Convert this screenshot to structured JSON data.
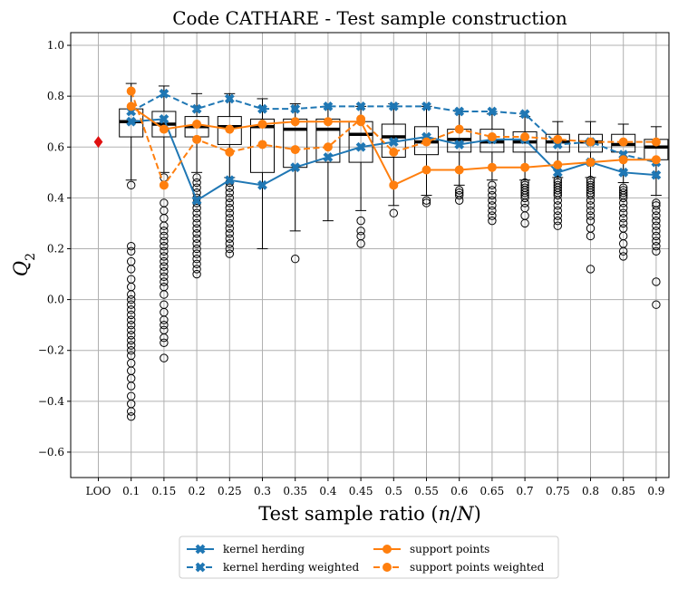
{
  "chart_data": {
    "type": "box",
    "title": "Code CATHARE - Test sample construction",
    "xlabel": "Test sample ratio (n/N)",
    "ylabel": "Q2",
    "ylim": [
      -0.7,
      1.05
    ],
    "yticks": [
      -0.6,
      -0.4,
      -0.2,
      0.0,
      0.2,
      0.4,
      0.6,
      0.8,
      1.0
    ],
    "categories": [
      "LOO",
      "0.1",
      "0.15",
      "0.2",
      "0.25",
      "0.3",
      "0.35",
      "0.4",
      "0.45",
      "0.5",
      "0.55",
      "0.6",
      "0.65",
      "0.7",
      "0.75",
      "0.8",
      "0.85",
      "0.9"
    ],
    "grid": true,
    "legend_position": "bottom-center",
    "loo_value": 0.62,
    "boxes": [
      {
        "category": "0.1",
        "q1": 0.64,
        "median": 0.7,
        "q3": 0.75,
        "whisker_low": 0.47,
        "whisker_high": 0.85,
        "outliers": [
          0.45,
          0.21,
          0.19,
          0.15,
          0.12,
          0.08,
          0.05,
          0.02,
          0.0,
          -0.02,
          -0.04,
          -0.06,
          -0.08,
          -0.1,
          -0.12,
          -0.14,
          -0.16,
          -0.18,
          -0.2,
          -0.22,
          -0.25,
          -0.28,
          -0.31,
          -0.34,
          -0.38,
          -0.41,
          -0.44,
          -0.46
        ]
      },
      {
        "category": "0.15",
        "q1": 0.64,
        "median": 0.69,
        "q3": 0.74,
        "whisker_low": 0.5,
        "whisker_high": 0.84,
        "outliers": [
          0.48,
          0.45,
          0.38,
          0.35,
          0.32,
          0.29,
          0.27,
          0.25,
          0.23,
          0.21,
          0.19,
          0.17,
          0.15,
          0.13,
          0.11,
          0.09,
          0.07,
          0.05,
          0.02,
          -0.02,
          -0.05,
          -0.08,
          -0.1,
          -0.12,
          -0.15,
          -0.17,
          -0.23
        ]
      },
      {
        "category": "0.2",
        "q1": 0.64,
        "median": 0.68,
        "q3": 0.72,
        "whisker_low": 0.5,
        "whisker_high": 0.81,
        "outliers": [
          0.48,
          0.46,
          0.44,
          0.42,
          0.4,
          0.38,
          0.36,
          0.34,
          0.32,
          0.3,
          0.28,
          0.26,
          0.24,
          0.22,
          0.2,
          0.18,
          0.16,
          0.14,
          0.12,
          0.1
        ]
      },
      {
        "category": "0.25",
        "q1": 0.61,
        "median": 0.68,
        "q3": 0.72,
        "whisker_low": 0.48,
        "whisker_high": 0.81,
        "outliers": [
          0.46,
          0.44,
          0.42,
          0.4,
          0.38,
          0.36,
          0.34,
          0.32,
          0.3,
          0.28,
          0.26,
          0.24,
          0.22,
          0.2,
          0.18
        ]
      },
      {
        "category": "0.3",
        "q1": 0.5,
        "median": 0.68,
        "q3": 0.71,
        "whisker_low": 0.2,
        "whisker_high": 0.79,
        "outliers": []
      },
      {
        "category": "0.35",
        "q1": 0.52,
        "median": 0.67,
        "q3": 0.71,
        "whisker_low": 0.27,
        "whisker_high": 0.77,
        "outliers": [
          0.16
        ]
      },
      {
        "category": "0.4",
        "q1": 0.54,
        "median": 0.67,
        "q3": 0.71,
        "whisker_low": 0.31,
        "whisker_high": 0.76,
        "outliers": []
      },
      {
        "category": "0.45",
        "q1": 0.54,
        "median": 0.65,
        "q3": 0.7,
        "whisker_low": 0.35,
        "whisker_high": 0.76,
        "outliers": [
          0.31,
          0.27,
          0.25,
          0.22
        ]
      },
      {
        "category": "0.5",
        "q1": 0.56,
        "median": 0.64,
        "q3": 0.69,
        "whisker_low": 0.37,
        "whisker_high": 0.77,
        "outliers": [
          0.34
        ]
      },
      {
        "category": "0.55",
        "q1": 0.57,
        "median": 0.62,
        "q3": 0.68,
        "whisker_low": 0.41,
        "whisker_high": 0.76,
        "outliers": [
          0.39,
          0.38
        ]
      },
      {
        "category": "0.6",
        "q1": 0.58,
        "median": 0.63,
        "q3": 0.67,
        "whisker_low": 0.45,
        "whisker_high": 0.74,
        "outliers": [
          0.43,
          0.42,
          0.41,
          0.39
        ]
      },
      {
        "category": "0.65",
        "q1": 0.58,
        "median": 0.62,
        "q3": 0.67,
        "whisker_low": 0.47,
        "whisker_high": 0.73,
        "outliers": [
          0.45,
          0.43,
          0.41,
          0.39,
          0.37,
          0.35,
          0.33,
          0.31
        ]
      },
      {
        "category": "0.7",
        "q1": 0.58,
        "median": 0.62,
        "q3": 0.66,
        "whisker_low": 0.47,
        "whisker_high": 0.72,
        "outliers": [
          0.46,
          0.45,
          0.44,
          0.43,
          0.42,
          0.41,
          0.4,
          0.38,
          0.36,
          0.33,
          0.3
        ]
      },
      {
        "category": "0.75",
        "q1": 0.58,
        "median": 0.62,
        "q3": 0.65,
        "whisker_low": 0.48,
        "whisker_high": 0.7,
        "outliers": [
          0.47,
          0.46,
          0.45,
          0.44,
          0.43,
          0.42,
          0.41,
          0.39,
          0.37,
          0.35,
          0.33,
          0.31,
          0.29
        ]
      },
      {
        "category": "0.8",
        "q1": 0.58,
        "median": 0.62,
        "q3": 0.65,
        "whisker_low": 0.48,
        "whisker_high": 0.7,
        "outliers": [
          0.47,
          0.46,
          0.45,
          0.44,
          0.43,
          0.42,
          0.41,
          0.39,
          0.37,
          0.35,
          0.33,
          0.31,
          0.28,
          0.25,
          0.12
        ]
      },
      {
        "category": "0.85",
        "q1": 0.58,
        "median": 0.61,
        "q3": 0.65,
        "whisker_low": 0.46,
        "whisker_high": 0.69,
        "outliers": [
          0.44,
          0.43,
          0.42,
          0.41,
          0.4,
          0.38,
          0.36,
          0.34,
          0.32,
          0.3,
          0.28,
          0.25,
          0.22,
          0.19,
          0.17
        ]
      },
      {
        "category": "0.9",
        "q1": 0.55,
        "median": 0.6,
        "q3": 0.63,
        "whisker_low": 0.41,
        "whisker_high": 0.68,
        "outliers": [
          0.38,
          0.37,
          0.35,
          0.33,
          0.31,
          0.29,
          0.27,
          0.25,
          0.23,
          0.21,
          0.19,
          0.07,
          -0.02
        ]
      }
    ],
    "series": [
      {
        "name": "kernel herding",
        "color": "#1f77b4",
        "linestyle": "solid",
        "marker": "X",
        "x": [
          "0.1",
          "0.15",
          "0.2",
          "0.25",
          "0.3",
          "0.35",
          "0.4",
          "0.45",
          "0.5",
          "0.55",
          "0.6",
          "0.65",
          "0.7",
          "0.75",
          "0.8",
          "0.85",
          "0.9"
        ],
        "values": [
          0.7,
          0.71,
          0.39,
          0.47,
          0.45,
          0.52,
          0.56,
          0.6,
          0.62,
          0.64,
          0.61,
          0.63,
          0.63,
          0.5,
          0.54,
          0.5,
          0.49
        ]
      },
      {
        "name": "kernel herding weighted",
        "color": "#1f77b4",
        "linestyle": "dashed",
        "marker": "X",
        "x": [
          "0.1",
          "0.15",
          "0.2",
          "0.25",
          "0.3",
          "0.35",
          "0.4",
          "0.45",
          "0.5",
          "0.55",
          "0.6",
          "0.65",
          "0.7",
          "0.75",
          "0.8",
          "0.85",
          "0.9"
        ],
        "values": [
          0.74,
          0.81,
          0.75,
          0.79,
          0.75,
          0.75,
          0.76,
          0.76,
          0.76,
          0.76,
          0.74,
          0.74,
          0.73,
          0.61,
          0.62,
          0.57,
          0.54
        ]
      },
      {
        "name": "support points",
        "color": "#ff7f0e",
        "linestyle": "solid",
        "marker": "o",
        "x": [
          "0.1",
          "0.15",
          "0.2",
          "0.25",
          "0.3",
          "0.35",
          "0.4",
          "0.45",
          "0.5",
          "0.55",
          "0.6",
          "0.65",
          "0.7",
          "0.75",
          "0.8",
          "0.85",
          "0.9"
        ],
        "values": [
          0.76,
          0.67,
          0.69,
          0.67,
          0.69,
          0.7,
          0.7,
          0.7,
          0.45,
          0.51,
          0.51,
          0.52,
          0.52,
          0.53,
          0.54,
          0.55,
          0.55
        ]
      },
      {
        "name": "support points weighted",
        "color": "#ff7f0e",
        "linestyle": "dashed",
        "marker": "o",
        "x": [
          "0.1",
          "0.15",
          "0.2",
          "0.25",
          "0.3",
          "0.35",
          "0.4",
          "0.45",
          "0.5",
          "0.55",
          "0.6",
          "0.65",
          "0.7",
          "0.75",
          "0.8",
          "0.85",
          "0.9"
        ],
        "values": [
          0.82,
          0.45,
          0.63,
          0.58,
          0.61,
          0.59,
          0.6,
          0.71,
          0.58,
          0.62,
          0.67,
          0.64,
          0.64,
          0.63,
          0.62,
          0.62,
          0.62
        ]
      }
    ]
  }
}
